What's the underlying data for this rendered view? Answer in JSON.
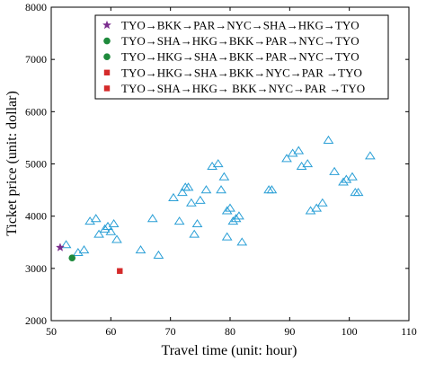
{
  "chart_data": {
    "type": "scatter",
    "xlabel": "Travel time (unit: hour)",
    "ylabel": "Ticket price (unit: dollar)",
    "xlim": [
      50,
      110
    ],
    "ylim": [
      2000,
      8000
    ],
    "xticks": [
      50,
      60,
      70,
      80,
      90,
      100,
      110
    ],
    "yticks": [
      2000,
      3000,
      4000,
      5000,
      6000,
      7000,
      8000
    ],
    "grid": false,
    "legend_position": "top-right",
    "series": [
      {
        "name": "TYO→BKK→PAR→NYC→SHA→HKG→TYO",
        "marker": "star",
        "color": "#7b2d8e",
        "points": [
          [
            51.5,
            3400
          ]
        ]
      },
      {
        "name": "TYO→SHA→HKG→BKK→PAR→NYC→TYO",
        "marker": "circle",
        "color": "#1e8a3c",
        "points": [
          [
            53.5,
            3200
          ]
        ]
      },
      {
        "name": "TYO→HKG→SHA→BKK→PAR→NYC→TYO",
        "marker": "circle",
        "color": "#1e8a3c",
        "points": []
      },
      {
        "name": "TYO→HKG→SHA→BKK→NYC→PAR →TYO",
        "marker": "square",
        "color": "#d42a2a",
        "points": [
          [
            61.5,
            2950
          ]
        ]
      },
      {
        "name": "TYO→SHA→HKG→ BKK→NYC→PAR →TYO",
        "marker": "square",
        "color": "#d42a2a",
        "points": []
      },
      {
        "marker": "triangle",
        "color": "#2a9fd6",
        "points": [
          [
            52.5,
            3450
          ],
          [
            54.5,
            3300
          ],
          [
            55.5,
            3350
          ],
          [
            56.5,
            3900
          ],
          [
            57.5,
            3950
          ],
          [
            58,
            3650
          ],
          [
            59,
            3750
          ],
          [
            59.5,
            3800
          ],
          [
            60,
            3700
          ],
          [
            60.5,
            3850
          ],
          [
            61,
            3550
          ],
          [
            65,
            3350
          ],
          [
            67,
            3950
          ],
          [
            68,
            3250
          ],
          [
            70.5,
            4350
          ],
          [
            71.5,
            3900
          ],
          [
            72,
            4450
          ],
          [
            72.5,
            4550
          ],
          [
            73,
            4550
          ],
          [
            73.5,
            4250
          ],
          [
            74,
            3650
          ],
          [
            74.5,
            3850
          ],
          [
            75,
            4300
          ],
          [
            76,
            4500
          ],
          [
            77,
            4950
          ],
          [
            78,
            5000
          ],
          [
            78.5,
            4500
          ],
          [
            79,
            4750
          ],
          [
            79.5,
            4100
          ],
          [
            79.5,
            3600
          ],
          [
            80,
            4150
          ],
          [
            80.5,
            3900
          ],
          [
            81,
            3950
          ],
          [
            81.5,
            4000
          ],
          [
            82,
            3500
          ],
          [
            86.5,
            4500
          ],
          [
            87,
            4500
          ],
          [
            89.5,
            5100
          ],
          [
            90.5,
            5200
          ],
          [
            91.5,
            5250
          ],
          [
            92,
            4950
          ],
          [
            93,
            5000
          ],
          [
            93.5,
            4100
          ],
          [
            94.5,
            4150
          ],
          [
            95.5,
            4250
          ],
          [
            96.5,
            5450
          ],
          [
            97.5,
            4850
          ],
          [
            99,
            4650
          ],
          [
            99.5,
            4700
          ],
          [
            100.5,
            4750
          ],
          [
            101,
            4450
          ],
          [
            101.5,
            4450
          ],
          [
            103.5,
            5150
          ]
        ]
      }
    ]
  }
}
